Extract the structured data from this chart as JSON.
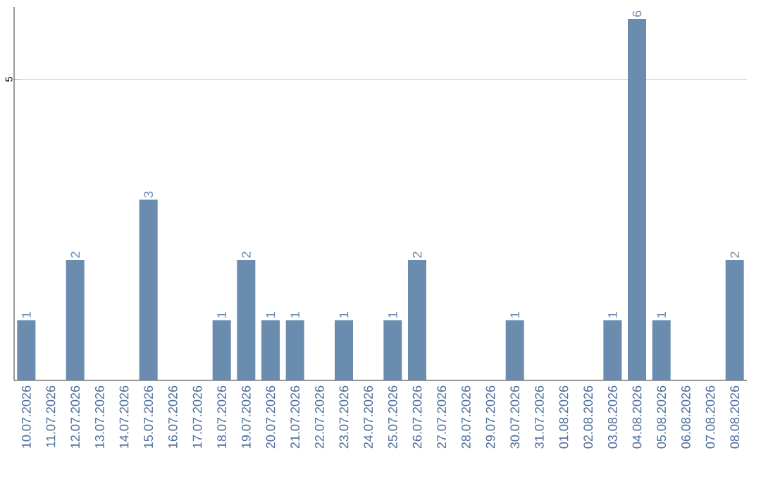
{
  "chart_data": {
    "type": "bar",
    "categories": [
      "10.07.2026",
      "11.07.2026",
      "12.07.2026",
      "13.07.2026",
      "14.07.2026",
      "15.07.2026",
      "16.07.2026",
      "17.07.2026",
      "18.07.2026",
      "19.07.2026",
      "20.07.2026",
      "21.07.2026",
      "22.07.2026",
      "23.07.2026",
      "24.07.2026",
      "25.07.2026",
      "26.07.2026",
      "27.07.2026",
      "28.07.2026",
      "29.07.2026",
      "30.07.2026",
      "31.07.2026",
      "01.08.2026",
      "02.08.2026",
      "03.08.2026",
      "04.08.2026",
      "05.08.2026",
      "06.08.2026",
      "07.08.2026",
      "08.08.2026"
    ],
    "values": [
      1,
      0,
      2,
      0,
      0,
      3,
      0,
      0,
      1,
      2,
      1,
      1,
      0,
      1,
      0,
      1,
      2,
      0,
      0,
      0,
      1,
      0,
      0,
      0,
      1,
      6,
      1,
      0,
      0,
      2
    ],
    "value_labels": [
      "1",
      null,
      "2",
      null,
      null,
      "3",
      null,
      null,
      "1",
      "2",
      "1",
      "1",
      null,
      "1",
      null,
      "1",
      "2",
      null,
      null,
      null,
      "1",
      null,
      null,
      null,
      "1",
      "6",
      "1",
      null,
      null,
      "2"
    ],
    "color": "#6a8caf",
    "ylim": [
      0,
      6.2
    ],
    "yticks": [
      5
    ],
    "grid": "y"
  }
}
